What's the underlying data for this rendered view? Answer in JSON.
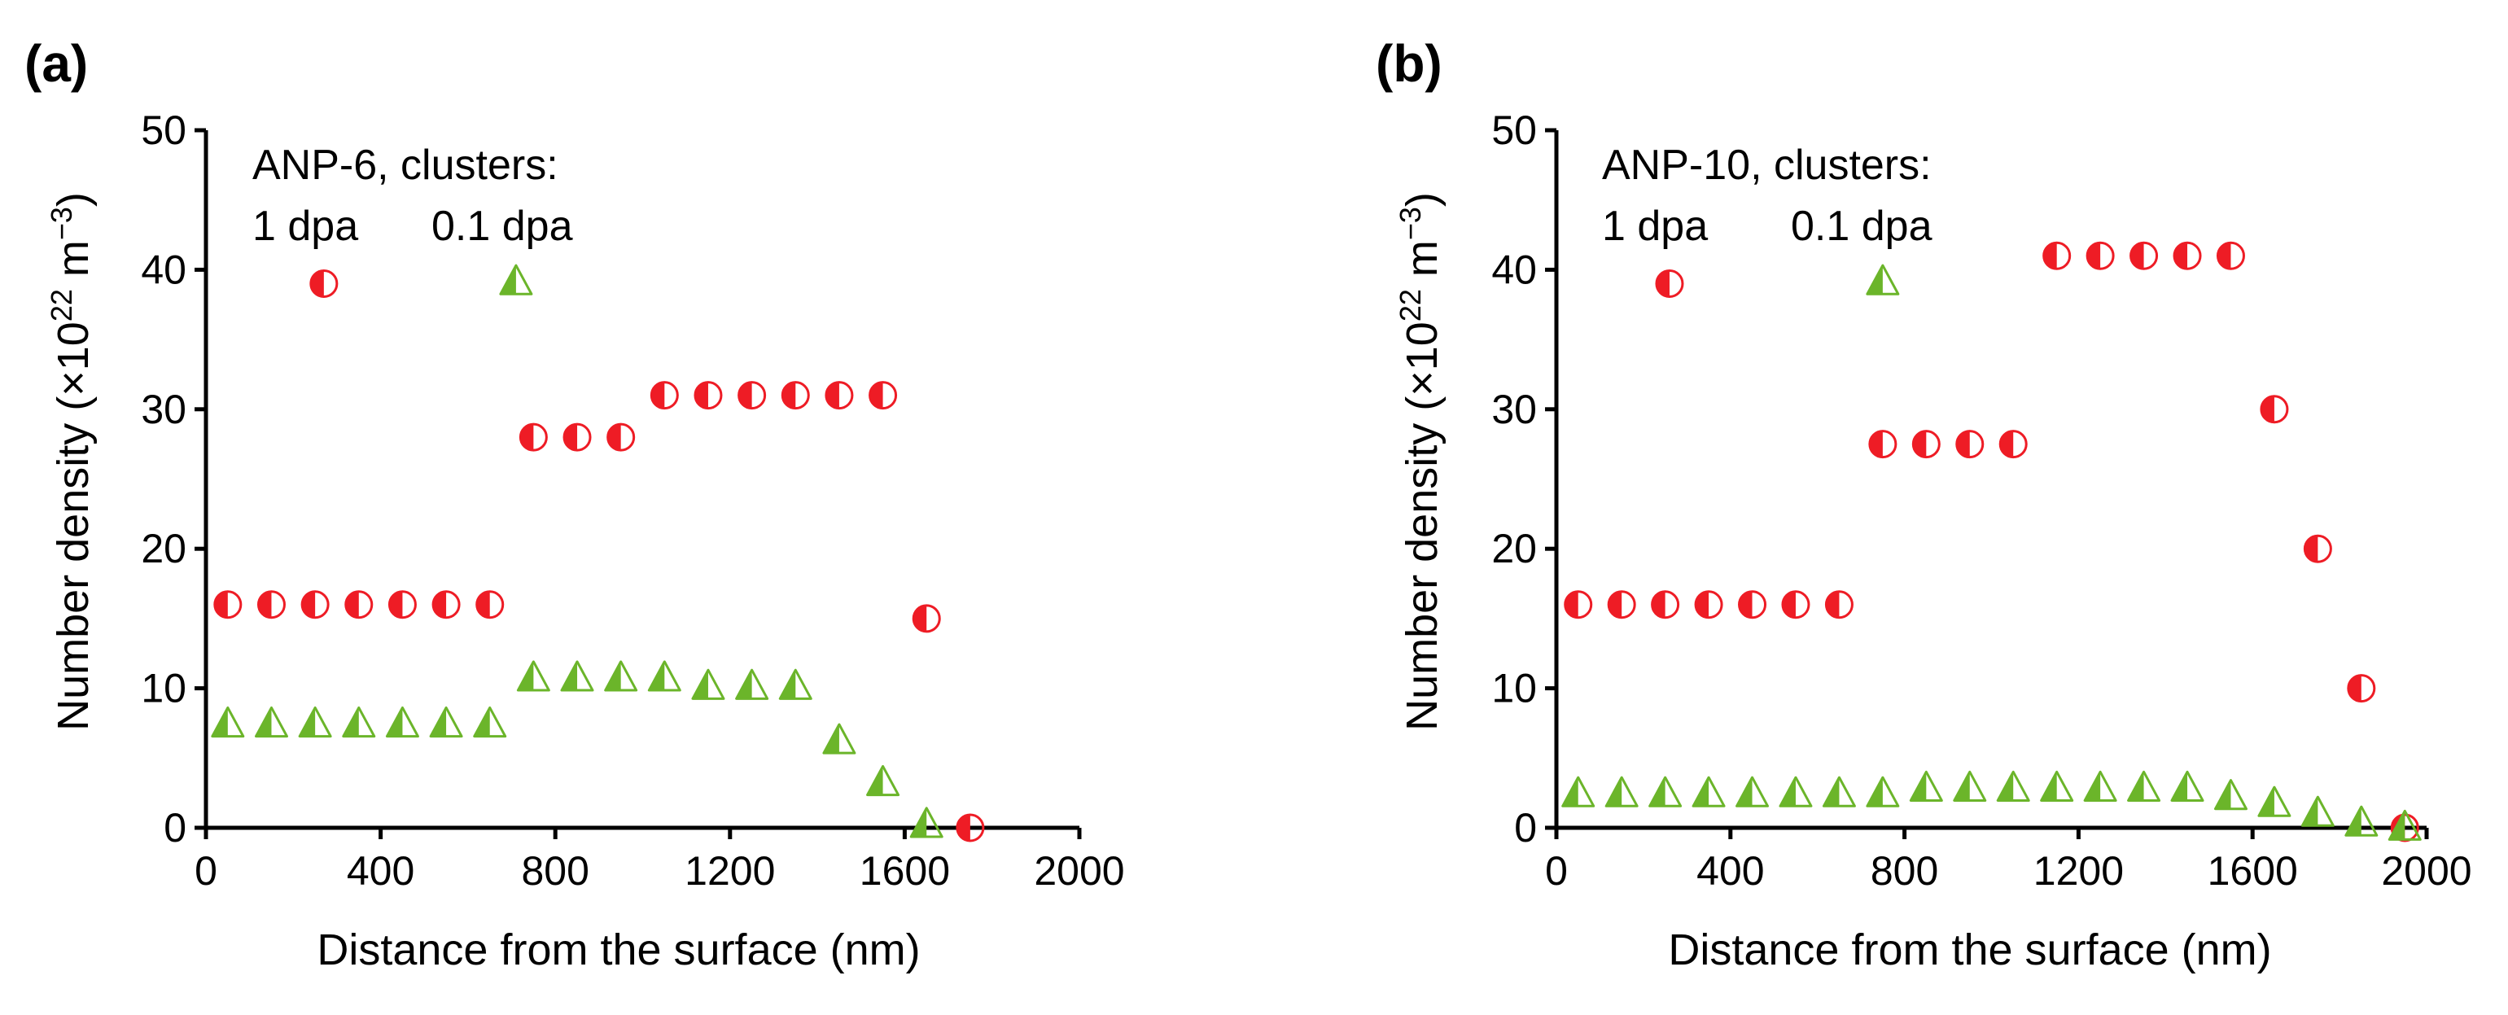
{
  "colors": {
    "circle_fill": "#ee1c25",
    "triangle_fill": "#6bb52a",
    "axis": "#000000"
  },
  "chart_data": [
    {
      "type": "scatter",
      "panel_label": "(a)",
      "xlabel": "Distance from the surface (nm)",
      "ylabel_prefix": "Number density (×10",
      "ylabel_sup1": "22",
      "ylabel_mid": " m",
      "ylabel_sup2": "−3",
      "ylabel_suffix": ")",
      "xlim": [
        0,
        2000
      ],
      "ylim": [
        0,
        50
      ],
      "xticks": [
        0,
        400,
        800,
        1200,
        1600,
        2000
      ],
      "yticks": [
        0,
        10,
        20,
        30,
        40,
        50
      ],
      "annotation": {
        "title": "ANP-6, clusters:",
        "legend_1dpa": "1 dpa",
        "legend_01dpa": "0.1 dpa"
      },
      "legend_marker_1dpa": {
        "x": 270,
        "y": 39
      },
      "legend_marker_01dpa": {
        "x": 710,
        "y": 39.2
      },
      "series": [
        {
          "name": "1 dpa",
          "marker": "half-circle",
          "points": [
            [
              50,
              16
            ],
            [
              150,
              16
            ],
            [
              250,
              16
            ],
            [
              350,
              16
            ],
            [
              450,
              16
            ],
            [
              550,
              16
            ],
            [
              650,
              16
            ],
            [
              750,
              28
            ],
            [
              850,
              28
            ],
            [
              950,
              28
            ],
            [
              1050,
              31
            ],
            [
              1150,
              31
            ],
            [
              1250,
              31
            ],
            [
              1350,
              31
            ],
            [
              1450,
              31
            ],
            [
              1550,
              31
            ],
            [
              1650,
              15
            ],
            [
              1750,
              0
            ]
          ]
        },
        {
          "name": "0.1 dpa",
          "marker": "half-triangle",
          "points": [
            [
              50,
              7.5
            ],
            [
              150,
              7.5
            ],
            [
              250,
              7.5
            ],
            [
              350,
              7.5
            ],
            [
              450,
              7.5
            ],
            [
              550,
              7.5
            ],
            [
              650,
              7.5
            ],
            [
              750,
              10.8
            ],
            [
              850,
              10.8
            ],
            [
              950,
              10.8
            ],
            [
              1050,
              10.8
            ],
            [
              1150,
              10.2
            ],
            [
              1250,
              10.2
            ],
            [
              1350,
              10.2
            ],
            [
              1450,
              6.3
            ],
            [
              1550,
              3.3
            ],
            [
              1650,
              0.3
            ]
          ]
        }
      ]
    },
    {
      "type": "scatter",
      "panel_label": "(b)",
      "xlabel": "Distance from the surface (nm)",
      "ylabel_prefix": "Number density (×10",
      "ylabel_sup1": "22",
      "ylabel_mid": " m",
      "ylabel_sup2": "−3",
      "ylabel_suffix": ")",
      "xlim": [
        0,
        2000
      ],
      "ylim": [
        0,
        50
      ],
      "xticks": [
        0,
        400,
        800,
        1200,
        1600,
        2000
      ],
      "yticks": [
        0,
        10,
        20,
        30,
        40,
        50
      ],
      "annotation": {
        "title": "ANP-10, clusters:",
        "legend_1dpa": "1 dpa",
        "legend_01dpa": "0.1 dpa"
      },
      "legend_marker_1dpa": {
        "x": 260,
        "y": 39
      },
      "legend_marker_01dpa": {
        "x": 750,
        "y": 39.2
      },
      "series": [
        {
          "name": "1 dpa",
          "marker": "half-circle",
          "points": [
            [
              50,
              16
            ],
            [
              150,
              16
            ],
            [
              250,
              16
            ],
            [
              350,
              16
            ],
            [
              450,
              16
            ],
            [
              550,
              16
            ],
            [
              650,
              16
            ],
            [
              750,
              27.5
            ],
            [
              850,
              27.5
            ],
            [
              950,
              27.5
            ],
            [
              1050,
              27.5
            ],
            [
              1150,
              41
            ],
            [
              1250,
              41
            ],
            [
              1350,
              41
            ],
            [
              1450,
              41
            ],
            [
              1550,
              41
            ],
            [
              1650,
              30
            ],
            [
              1750,
              20
            ],
            [
              1850,
              10
            ],
            [
              1950,
              0
            ]
          ]
        },
        {
          "name": "0.1 dpa",
          "marker": "half-triangle",
          "points": [
            [
              50,
              2.5
            ],
            [
              150,
              2.5
            ],
            [
              250,
              2.5
            ],
            [
              350,
              2.5
            ],
            [
              450,
              2.5
            ],
            [
              550,
              2.5
            ],
            [
              650,
              2.5
            ],
            [
              750,
              2.5
            ],
            [
              850,
              2.9
            ],
            [
              950,
              2.9
            ],
            [
              1050,
              2.9
            ],
            [
              1150,
              2.9
            ],
            [
              1250,
              2.9
            ],
            [
              1350,
              2.9
            ],
            [
              1450,
              2.9
            ],
            [
              1550,
              2.3
            ],
            [
              1650,
              1.8
            ],
            [
              1750,
              1.1
            ],
            [
              1850,
              0.4
            ],
            [
              1950,
              0.1
            ]
          ]
        }
      ]
    }
  ]
}
